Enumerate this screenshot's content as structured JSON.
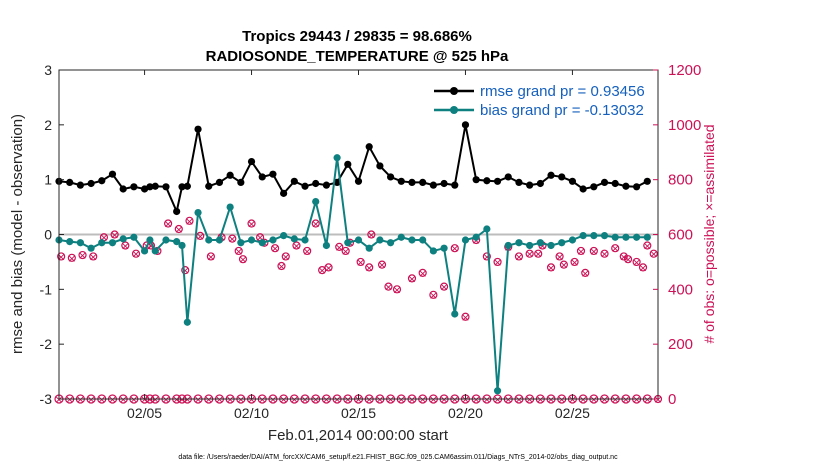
{
  "chart_data": {
    "type": "line",
    "title": "Tropics 29443 / 29835 = 98.686%",
    "subtitle": "RADIOSONDE_TEMPERATURE @ 525 hPa",
    "xlabel": "Feb.01,2014 00:00:00 start",
    "ylabel": "rmse and bias (model - observation)",
    "ylabel_right": "# of obs: o=possible; ×=assimilated",
    "xlim": [
      1.0,
      29.0
    ],
    "ylim": [
      -3,
      3
    ],
    "ylim_right": [
      0,
      1200
    ],
    "xticks": [
      {
        "x": 5,
        "label": "02/05"
      },
      {
        "x": 10,
        "label": "02/10"
      },
      {
        "x": 15,
        "label": "02/15"
      },
      {
        "x": 20,
        "label": "02/20"
      },
      {
        "x": 25,
        "label": "02/25"
      }
    ],
    "yticks": [
      "3",
      "2",
      "1",
      "0",
      "-1",
      "-2",
      "-3"
    ],
    "yticks_right": [
      "1200",
      "1000",
      "800",
      "600",
      "400",
      "200",
      "0"
    ],
    "footnote": "data file: /Users/raeder/DAI/ATM_forcXX/CAM6_setup/f.e21.FHIST_BGC.f09_025.CAM6assim.011/Diags_NTrS_2014-02/obs_diag_output.nc",
    "legend": {
      "location": "top-right",
      "entries": [
        "rmse grand pr = 0.93456",
        "bias grand pr = -0.13032"
      ]
    },
    "colors": {
      "rmse": "#000000",
      "bias": "#0e8080",
      "obs": "#cc1155",
      "zero": "#bdbdbd"
    },
    "x": [
      1.0,
      1.5,
      2.0,
      2.5,
      3.0,
      3.5,
      4.0,
      4.5,
      5.0,
      5.25,
      5.5,
      6.0,
      6.5,
      6.75,
      7.0,
      7.5,
      8.0,
      8.5,
      9.0,
      9.5,
      10.0,
      10.5,
      11.0,
      11.5,
      12.0,
      12.5,
      13.0,
      13.5,
      14.0,
      14.5,
      15.0,
      15.5,
      16.0,
      16.5,
      17.0,
      17.5,
      18.0,
      18.5,
      19.0,
      19.5,
      20.0,
      20.5,
      21.0,
      21.5,
      22.0,
      22.5,
      23.0,
      23.5,
      24.0,
      24.5,
      25.0,
      25.5,
      26.0,
      26.5,
      27.0,
      27.5,
      28.0,
      28.5
    ],
    "series": [
      {
        "name": "rmse",
        "values": [
          0.97,
          0.95,
          0.9,
          0.93,
          0.98,
          1.1,
          0.83,
          0.87,
          0.83,
          0.87,
          0.88,
          0.87,
          0.42,
          0.87,
          0.88,
          1.92,
          0.88,
          0.95,
          1.08,
          0.95,
          1.33,
          1.05,
          1.1,
          0.75,
          0.97,
          0.88,
          0.93,
          0.9,
          0.95,
          1.28,
          0.97,
          1.6,
          1.25,
          1.05,
          0.97,
          0.95,
          0.95,
          0.9,
          0.93,
          0.9,
          2.0,
          1.0,
          0.98,
          0.97,
          1.05,
          0.95,
          0.9,
          0.93,
          1.08,
          1.05,
          0.97,
          0.83,
          0.87,
          0.95,
          0.93,
          0.88,
          0.87,
          0.97
        ]
      },
      {
        "name": "bias",
        "values": [
          -0.1,
          -0.13,
          -0.15,
          -0.25,
          -0.15,
          -0.15,
          -0.08,
          -0.05,
          -0.3,
          -0.1,
          -0.3,
          -0.1,
          -0.13,
          -0.2,
          -1.6,
          0.4,
          -0.1,
          -0.1,
          0.5,
          -0.15,
          -0.1,
          -0.15,
          -0.1,
          -0.02,
          -0.08,
          -0.1,
          0.6,
          -0.2,
          1.4,
          -0.15,
          -0.1,
          -0.25,
          -0.1,
          -0.15,
          -0.05,
          -0.1,
          -0.1,
          -0.3,
          -0.25,
          -1.45,
          -0.1,
          -0.05,
          0.1,
          -2.85,
          -0.2,
          -0.15,
          -0.2,
          -0.15,
          -0.2,
          -0.15,
          -0.1,
          -0.02,
          -0.02,
          -0.02,
          -0.05,
          -0.05,
          -0.05,
          -0.05
        ]
      }
    ],
    "obs_possible": [
      520,
      515,
      525,
      520,
      590,
      600,
      560,
      530,
      560,
      560,
      540,
      640,
      620,
      470,
      650,
      595,
      520,
      590,
      585,
      540,
      510,
      640,
      590,
      570,
      550,
      485,
      520,
      560,
      540,
      640,
      470,
      480,
      555,
      540,
      570,
      500,
      480,
      600,
      490,
      410,
      400,
      440,
      460,
      380,
      410,
      550,
      300,
      580,
      520,
      500,
      555,
      520,
      530,
      530,
      560,
      480,
      520,
      490,
      500,
      540,
      460,
      540,
      530,
      550,
      520,
      510,
      500,
      480,
      560,
      530,
      0
    ],
    "obs_possible_x": [
      1.1,
      1.6,
      2.1,
      2.6,
      3.1,
      3.6,
      4.1,
      4.6,
      5.1,
      5.3,
      5.6,
      6.1,
      6.6,
      6.9,
      7.1,
      7.6,
      8.1,
      8.6,
      9.1,
      9.4,
      9.6,
      10.0,
      10.4,
      10.6,
      11.1,
      11.4,
      11.6,
      12.1,
      12.6,
      13.0,
      13.3,
      13.6,
      14.1,
      14.4,
      14.6,
      15.1,
      15.5,
      15.6,
      16.1,
      16.4,
      16.8,
      17.5,
      18.0,
      18.5,
      19.0,
      19.5,
      20.0,
      20.5,
      21.0,
      21.5,
      22.0,
      22.5,
      23.0,
      23.4,
      23.6,
      24.0,
      24.4,
      24.6,
      25.1,
      25.4,
      25.6,
      26.0,
      26.5,
      27.0,
      27.4,
      27.6,
      28.0,
      28.3,
      28.5,
      28.8,
      29.0
    ]
  }
}
